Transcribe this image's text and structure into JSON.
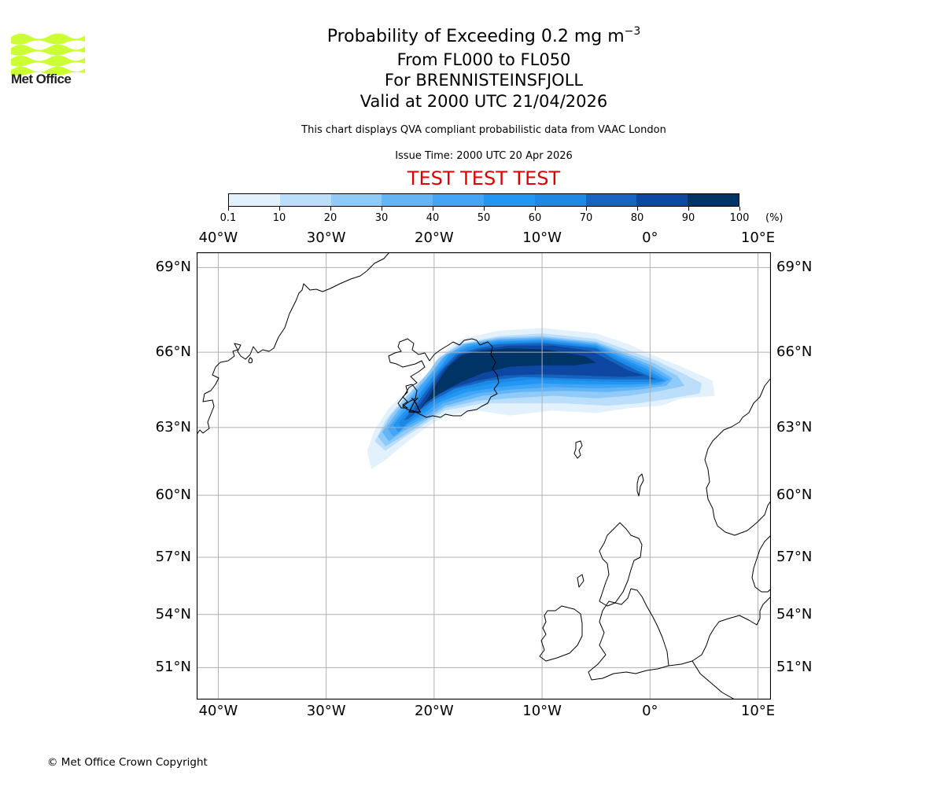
{
  "logo": {
    "text": "Met Office",
    "color": "#ccff33"
  },
  "header": {
    "title_main": "Probability of Exceeding 0.2 mg m",
    "title_superscript": "−3",
    "levels": "From FL000 to FL050",
    "volcano": "For BRENNISTEINSFJOLL",
    "valid": "Valid at 2000 UTC 21/04/2026",
    "description": "This chart displays QVA compliant probabilistic data from VAAC London",
    "issue_time": "Issue Time: 2000 UTC 20 Apr 2026",
    "test_banner": "TEST TEST TEST",
    "test_color": "#e00000"
  },
  "footer": {
    "copyright": "© Met Office Crown Copyright"
  },
  "chart_data": {
    "type": "heatmap",
    "title": "Probability of Exceeding 0.2 mg m−3",
    "projection": "mercator",
    "extent": {
      "lon": [
        -42,
        11.2
      ],
      "lat": [
        49.3,
        69.5
      ]
    },
    "grid": true,
    "colorbar": {
      "placement": "top",
      "unit": "(%)",
      "boundaries": [
        "0.1",
        "10",
        "20",
        "30",
        "40",
        "50",
        "60",
        "70",
        "80",
        "90",
        "100"
      ],
      "colors": [
        "#e3f1fd",
        "#bbdefb",
        "#90caf9",
        "#64b5f6",
        "#42a5f5",
        "#2196f3",
        "#1e88e5",
        "#1565c0",
        "#0d47a1",
        "#003366"
      ]
    },
    "lon_ticks": [
      {
        "value": -40,
        "label": "40°W"
      },
      {
        "value": -30,
        "label": "30°W"
      },
      {
        "value": -20,
        "label": "20°W"
      },
      {
        "value": -10,
        "label": "10°W"
      },
      {
        "value": 0,
        "label": "0°"
      },
      {
        "value": 10,
        "label": "10°E"
      }
    ],
    "lat_ticks": [
      {
        "value": 69,
        "label": "69°N"
      },
      {
        "value": 66,
        "label": "66°N"
      },
      {
        "value": 63,
        "label": "63°N"
      },
      {
        "value": 60,
        "label": "60°N"
      },
      {
        "value": 57,
        "label": "57°N"
      },
      {
        "value": 54,
        "label": "54°N"
      },
      {
        "value": 51,
        "label": "51°N"
      }
    ],
    "volcano_location": {
      "name": "BRENNISTEINSFJOLL",
      "lon": -21.8,
      "lat": 63.9
    },
    "probability_bands": [
      {
        "level": 1,
        "probability": "0.1-10",
        "outline": [
          [
            -26.2,
            62.0
          ],
          [
            -25.5,
            62.9
          ],
          [
            -24.2,
            63.8
          ],
          [
            -22.5,
            64.5
          ],
          [
            -20.5,
            65.2
          ],
          [
            -19.5,
            65.9
          ],
          [
            -17.5,
            66.5
          ],
          [
            -14,
            66.8
          ],
          [
            -10,
            66.9
          ],
          [
            -5,
            66.7
          ],
          [
            -2,
            66.3
          ],
          [
            0.2,
            65.9
          ],
          [
            3.2,
            65.4
          ],
          [
            5.8,
            64.9
          ],
          [
            6.0,
            64.3
          ],
          [
            3,
            64.2
          ],
          [
            1,
            63.9
          ],
          [
            -2,
            63.8
          ],
          [
            -5,
            63.6
          ],
          [
            -9,
            63.7
          ],
          [
            -13,
            63.5
          ],
          [
            -16,
            63.7
          ],
          [
            -19,
            63.5
          ],
          [
            -21,
            62.9
          ],
          [
            -23,
            62.2
          ],
          [
            -24.5,
            61.6
          ],
          [
            -25.8,
            61.2
          ]
        ]
      },
      {
        "level": 2,
        "probability": "10-20",
        "outline": [
          [
            -25.5,
            62.4
          ],
          [
            -24.5,
            63.3
          ],
          [
            -22.8,
            64.2
          ],
          [
            -21,
            64.9
          ],
          [
            -19.8,
            65.7
          ],
          [
            -17.8,
            66.3
          ],
          [
            -14,
            66.6
          ],
          [
            -10,
            66.7
          ],
          [
            -5,
            66.5
          ],
          [
            -2.2,
            66.1
          ],
          [
            0.5,
            65.7
          ],
          [
            3,
            65.2
          ],
          [
            4.8,
            64.8
          ],
          [
            4.6,
            64.4
          ],
          [
            2,
            64.2
          ],
          [
            -1,
            64.0
          ],
          [
            -4,
            63.9
          ],
          [
            -8,
            64.0
          ],
          [
            -12,
            64.0
          ],
          [
            -15.5,
            64.0
          ],
          [
            -19,
            63.7
          ],
          [
            -21,
            63.1
          ],
          [
            -23,
            62.5
          ],
          [
            -24.5,
            62.0
          ]
        ]
      },
      {
        "level": 3,
        "probability": "20-30",
        "outline": [
          [
            -25.2,
            62.6
          ],
          [
            -24,
            63.5
          ],
          [
            -22.5,
            64.3
          ],
          [
            -20.8,
            65.1
          ],
          [
            -19.5,
            65.8
          ],
          [
            -17.5,
            66.3
          ],
          [
            -14,
            66.55
          ],
          [
            -10,
            66.6
          ],
          [
            -5,
            66.4
          ],
          [
            -2.4,
            66.0
          ],
          [
            0.3,
            65.6
          ],
          [
            2.5,
            65.1
          ],
          [
            3.2,
            64.7
          ],
          [
            1,
            64.5
          ],
          [
            -2,
            64.3
          ],
          [
            -5,
            64.2
          ],
          [
            -9,
            64.3
          ],
          [
            -13,
            64.2
          ],
          [
            -16,
            64.1
          ],
          [
            -19,
            63.8
          ],
          [
            -21,
            63.2
          ],
          [
            -23,
            62.6
          ],
          [
            -24.5,
            62.2
          ]
        ]
      },
      {
        "level": 4,
        "probability": "30-40",
        "outline": [
          [
            -24.8,
            62.8
          ],
          [
            -23.5,
            63.6
          ],
          [
            -22,
            64.4
          ],
          [
            -20.5,
            65.1
          ],
          [
            -19.2,
            65.8
          ],
          [
            -17.2,
            66.3
          ],
          [
            -14,
            66.5
          ],
          [
            -10,
            66.55
          ],
          [
            -5,
            66.35
          ],
          [
            -2.6,
            65.95
          ],
          [
            0.1,
            65.5
          ],
          [
            2.1,
            65.0
          ],
          [
            1.5,
            64.7
          ],
          [
            -1,
            64.55
          ],
          [
            -4,
            64.45
          ],
          [
            -8,
            64.5
          ],
          [
            -12,
            64.45
          ],
          [
            -15.5,
            64.3
          ],
          [
            -19,
            63.9
          ],
          [
            -21,
            63.3
          ],
          [
            -23,
            62.8
          ],
          [
            -24.2,
            62.4
          ]
        ]
      },
      {
        "level": 5,
        "probability": "40-50",
        "outline": [
          [
            -24.3,
            62.95
          ],
          [
            -23,
            63.7
          ],
          [
            -21.6,
            64.5
          ],
          [
            -20.2,
            65.2
          ],
          [
            -18.9,
            65.9
          ],
          [
            -16.9,
            66.3
          ],
          [
            -14,
            66.45
          ],
          [
            -10,
            66.5
          ],
          [
            -5,
            66.3
          ],
          [
            -2.8,
            65.9
          ],
          [
            -0.2,
            65.45
          ],
          [
            1.8,
            64.95
          ],
          [
            1,
            64.75
          ],
          [
            -1.5,
            64.65
          ],
          [
            -5,
            64.6
          ],
          [
            -9,
            64.65
          ],
          [
            -13,
            64.55
          ],
          [
            -16,
            64.4
          ],
          [
            -19.2,
            64.0
          ],
          [
            -21,
            63.4
          ],
          [
            -22.8,
            62.95
          ],
          [
            -23.8,
            62.6
          ]
        ]
      },
      {
        "level": 6,
        "probability": "50-60",
        "outline": [
          [
            -23.8,
            63.1
          ],
          [
            -22.5,
            63.8
          ],
          [
            -21.2,
            64.5
          ],
          [
            -19.9,
            65.2
          ],
          [
            -18.6,
            65.9
          ],
          [
            -16.6,
            66.25
          ],
          [
            -14,
            66.4
          ],
          [
            -10,
            66.45
          ],
          [
            -5,
            66.25
          ],
          [
            -3,
            65.85
          ],
          [
            -0.5,
            65.4
          ],
          [
            1.5,
            64.9
          ],
          [
            0.5,
            64.8
          ],
          [
            -2,
            64.75
          ],
          [
            -6,
            64.75
          ],
          [
            -10,
            64.8
          ],
          [
            -14,
            64.65
          ],
          [
            -17,
            64.45
          ],
          [
            -19.5,
            64.05
          ],
          [
            -21.2,
            63.5
          ],
          [
            -22.6,
            63.1
          ],
          [
            -23.3,
            62.8
          ]
        ]
      },
      {
        "level": 7,
        "probability": "60-70",
        "outline": [
          [
            -23.3,
            63.2
          ],
          [
            -22,
            63.9
          ],
          [
            -20.8,
            64.6
          ],
          [
            -19.6,
            65.3
          ],
          [
            -18.3,
            65.9
          ],
          [
            -16.3,
            66.2
          ],
          [
            -14,
            66.35
          ],
          [
            -10,
            66.4
          ],
          [
            -5,
            66.2
          ],
          [
            -3.2,
            65.8
          ],
          [
            -0.8,
            65.35
          ],
          [
            1.2,
            64.9
          ],
          [
            0,
            64.85
          ],
          [
            -3,
            64.85
          ],
          [
            -7,
            64.9
          ],
          [
            -11,
            64.95
          ],
          [
            -14.5,
            64.8
          ],
          [
            -17.5,
            64.55
          ],
          [
            -19.8,
            64.1
          ],
          [
            -21.3,
            63.6
          ],
          [
            -22.5,
            63.2
          ],
          [
            -23,
            62.95
          ]
        ]
      },
      {
        "level": 8,
        "probability": "70-80",
        "outline": [
          [
            -22.8,
            63.3
          ],
          [
            -21.6,
            64.0
          ],
          [
            -20.4,
            64.7
          ],
          [
            -19.3,
            65.35
          ],
          [
            -18,
            65.9
          ],
          [
            -16,
            66.15
          ],
          [
            -14,
            66.3
          ],
          [
            -10,
            66.35
          ],
          [
            -5,
            66.15
          ],
          [
            -3.4,
            65.75
          ],
          [
            -1.2,
            65.3
          ],
          [
            0.6,
            64.95
          ],
          [
            -1,
            64.95
          ],
          [
            -4,
            64.95
          ],
          [
            -8,
            65.0
          ],
          [
            -12,
            65.05
          ],
          [
            -15,
            64.9
          ],
          [
            -18,
            64.6
          ],
          [
            -20,
            64.15
          ],
          [
            -21.4,
            63.7
          ],
          [
            -22.4,
            63.35
          ]
        ]
      },
      {
        "level": 9,
        "probability": "80-90",
        "outline": [
          [
            -22.2,
            63.45
          ],
          [
            -21.1,
            64.1
          ],
          [
            -20,
            64.8
          ],
          [
            -19,
            65.4
          ],
          [
            -17.7,
            65.9
          ],
          [
            -15.8,
            66.1
          ],
          [
            -13,
            66.25
          ],
          [
            -9,
            66.25
          ],
          [
            -5.5,
            66.05
          ],
          [
            -3.8,
            65.7
          ],
          [
            -2,
            65.3
          ],
          [
            -0.5,
            65.1
          ],
          [
            -2.5,
            65.05
          ],
          [
            -6,
            65.1
          ],
          [
            -10,
            65.15
          ],
          [
            -13.5,
            65.1
          ],
          [
            -16,
            64.9
          ],
          [
            -18.5,
            64.6
          ],
          [
            -20.2,
            64.2
          ],
          [
            -21.4,
            63.8
          ]
        ]
      },
      {
        "level": 10,
        "probability": "90-100",
        "outline": [
          [
            -21.6,
            63.6
          ],
          [
            -20.6,
            64.2
          ],
          [
            -19.6,
            64.9
          ],
          [
            -18.7,
            65.45
          ],
          [
            -17.4,
            65.9
          ],
          [
            -15.6,
            66.05
          ],
          [
            -13,
            66.15
          ],
          [
            -9.5,
            66.1
          ],
          [
            -6,
            65.85
          ],
          [
            -5,
            65.6
          ],
          [
            -7,
            65.5
          ],
          [
            -10,
            65.5
          ],
          [
            -13,
            65.45
          ],
          [
            -15.5,
            65.2
          ],
          [
            -17.5,
            64.85
          ],
          [
            -19.5,
            64.4
          ],
          [
            -20.8,
            64.0
          ]
        ]
      }
    ]
  }
}
